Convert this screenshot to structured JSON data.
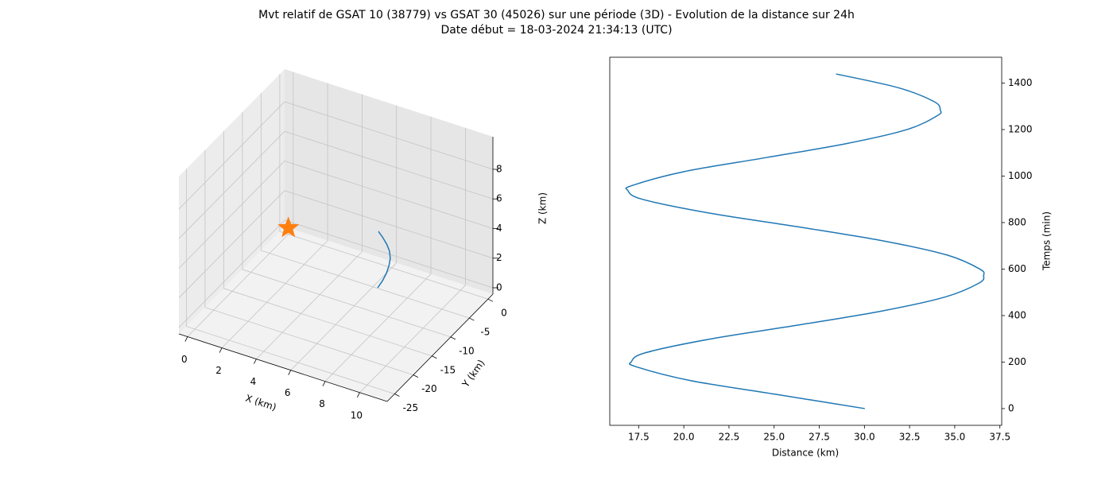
{
  "title": "Mvt relatif de GSAT 10 (38779) vs GSAT 30 (45026) sur une période (3D) - Evolution de la distance sur 24h",
  "subtitle": "Date début = 18-03-2024 21:34:13 (UTC)",
  "chart_data": [
    {
      "type": "line3d",
      "xlabel": "X (km)",
      "ylabel": "Y (km)",
      "zlabel": "Z (km)",
      "xlim": [
        -0.5,
        11.6
      ],
      "ylim": [
        -27,
        1.3
      ],
      "zlim": [
        -0.43,
        10.2
      ],
      "xticks": [
        0,
        2,
        4,
        6,
        8,
        10
      ],
      "yticks": [
        0,
        -5,
        -10,
        -15,
        -20,
        -25
      ],
      "zticks": [
        0,
        2,
        4,
        6,
        8
      ],
      "grid": true,
      "line": {
        "color": "#1f77b4",
        "x": [
          6.53,
          6.75,
          6.92,
          7.03,
          7.09,
          7.07,
          6.98,
          6.84,
          6.68
        ],
        "y": [
          -6.17,
          -5.85,
          -5.6,
          -5.45,
          -5.39,
          -5.5,
          -5.8,
          -6.2,
          -6.68
        ],
        "z": [
          0,
          0.5,
          1,
          1.5,
          2,
          2.5,
          3,
          3.5,
          4
        ]
      },
      "points": {
        "color": "#ff7f0e",
        "marker": "star",
        "x": [
          0
        ],
        "y": [
          0
        ],
        "z": [
          0
        ]
      }
    },
    {
      "type": "line",
      "xlabel": "Distance (km)",
      "ylabel": "Temps (min)",
      "yaxis_side": "right",
      "color": "#1f77b4",
      "x": [
        30.02,
        25.2,
        20.4,
        17.36,
        17.1,
        17.87,
        21.52,
        26.4,
        30.99,
        34.47,
        36.35,
        36.6,
        36.39,
        34.59,
        31.12,
        26.46,
        21.47,
        17.71,
        16.9,
        17.16,
        20.07,
        24.6,
        29.03,
        32.36,
        34.04,
        34.2,
        33.86,
        31.87,
        28.43
      ],
      "y": [
        0,
        60,
        120,
        180,
        202,
        240,
        300,
        360,
        420,
        480,
        540,
        572,
        600,
        660,
        720,
        780,
        840,
        900,
        938,
        960,
        1020,
        1080,
        1140,
        1200,
        1260,
        1284,
        1320,
        1380,
        1439
      ],
      "xlim": [
        15.9,
        37.6
      ],
      "ylim": [
        -72,
        1511
      ],
      "xticks": [
        17.5,
        {
          "value": 20,
          "label": "20.0"
        },
        22.5,
        {
          "value": 25,
          "label": "25.0"
        },
        27.5,
        {
          "value": 30,
          "label": "30.0"
        },
        32.5,
        {
          "value": 35,
          "label": "35.0"
        },
        37.5
      ],
      "yticks": [
        0,
        200,
        400,
        600,
        800,
        1000,
        1200,
        1400
      ]
    }
  ]
}
